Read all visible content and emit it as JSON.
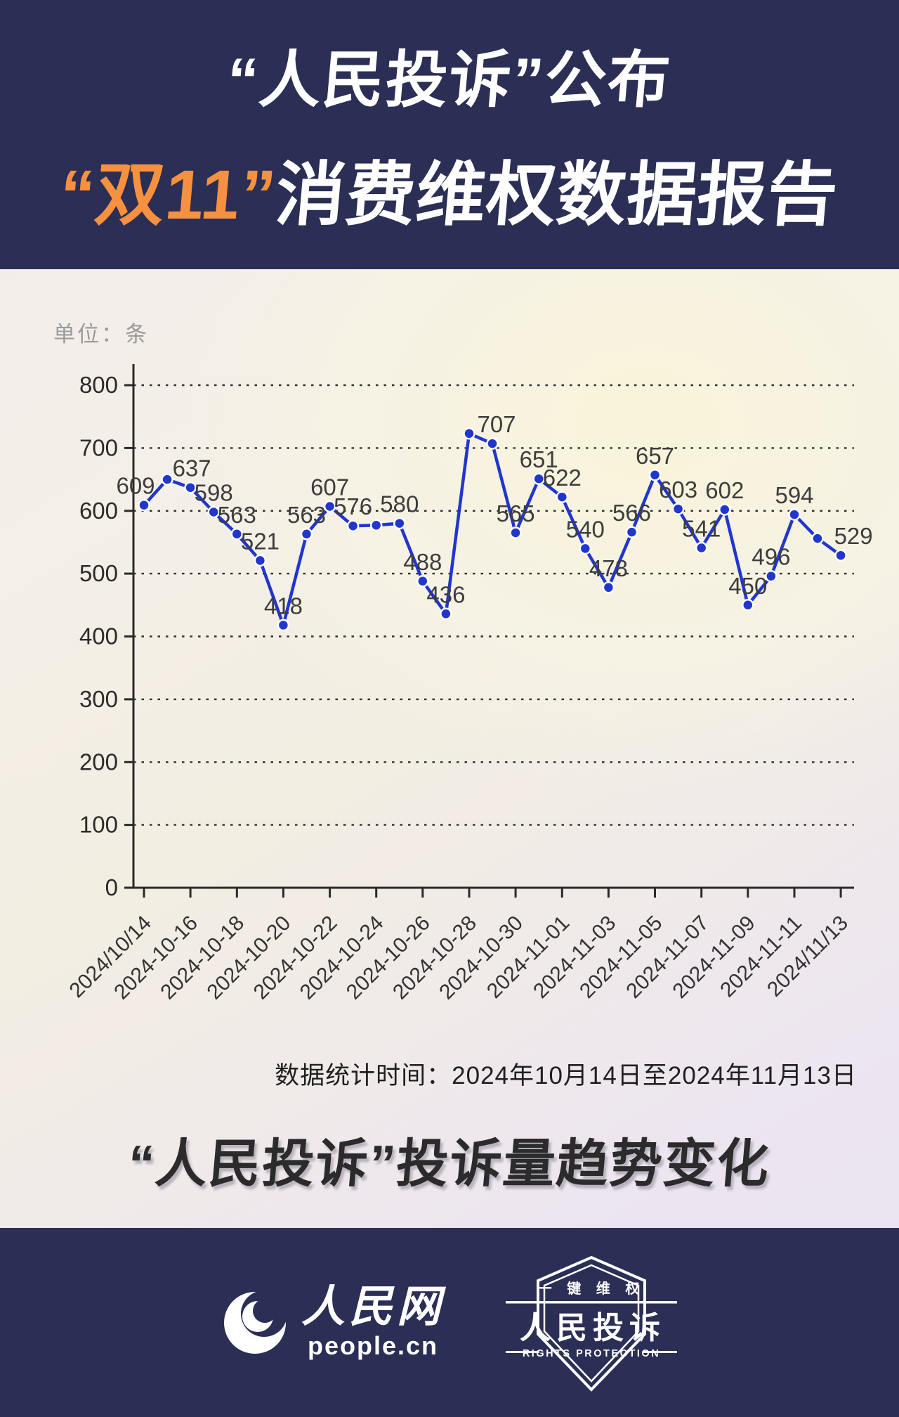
{
  "header": {
    "bg_color": "#2b2e55",
    "highlight_color": "#f7913f",
    "title_line1": "“人民投诉”公布",
    "title_line2_highlight": "“双11”",
    "title_line2_rest": "消费维权数据报告"
  },
  "chart_data": {
    "type": "line",
    "title": "“人民投诉”投诉量趋势变化",
    "unit_label": "单位：条",
    "caption": "数据统计时间：2024年10月14日至2024年11月13日",
    "ylabel": "",
    "xlabel": "",
    "ylim": [
      0,
      800
    ],
    "yticks": [
      0,
      100,
      200,
      300,
      400,
      500,
      600,
      700,
      800
    ],
    "grid": "dotted-horizontal",
    "line_color": "#2136cd",
    "point_color": "#2136cd",
    "x_dates": [
      "2024/10/14",
      "2024-10-15",
      "2024-10-16",
      "2024-10-17",
      "2024-10-18",
      "2024-10-19",
      "2024-10-20",
      "2024-10-21",
      "2024-10-22",
      "2024-10-23",
      "2024-10-24",
      "2024-10-25",
      "2024-10-26",
      "2024-10-27",
      "2024-10-28",
      "2024-10-29",
      "2024-10-30",
      "2024-10-31",
      "2024-11-01",
      "2024-11-02",
      "2024-11-03",
      "2024-11-04",
      "2024-11-05",
      "2024-11-06",
      "2024-11-07",
      "2024-11-08",
      "2024-11-09",
      "2024-11-10",
      "2024-11-11",
      "2024-11-12",
      "2024/11/13"
    ],
    "x_tick_labels": [
      "2024/10/14",
      "2024-10-16",
      "2024-10-18",
      "2024-10-20",
      "2024-10-22",
      "2024-10-24",
      "2024-10-26",
      "2024-10-28",
      "2024-10-30",
      "2024-11-01",
      "2024-11-03",
      "2024-11-05",
      "2024-11-07",
      "2024-11-09",
      "2024-11-11",
      "2024/11/13"
    ],
    "values": [
      609,
      650,
      637,
      598,
      563,
      521,
      418,
      563,
      607,
      576,
      577,
      580,
      488,
      436,
      723,
      707,
      565,
      651,
      622,
      540,
      478,
      566,
      657,
      603,
      541,
      602,
      450,
      496,
      594,
      556,
      529
    ],
    "point_labels": [
      "609",
      null,
      "637",
      "598",
      "563",
      "521",
      "418",
      "563",
      "607",
      "576",
      null,
      "580",
      "488",
      "436",
      null,
      "707",
      "565",
      "651",
      "622",
      "540",
      "478",
      "566",
      "657",
      "603",
      "541",
      "602",
      "450",
      "496",
      "594",
      null,
      "529"
    ]
  },
  "footer": {
    "bg_color": "#2b2e55",
    "people_logo": {
      "name_text": "人民网",
      "domain_text": "people.cn"
    },
    "badge": {
      "top_text": "一 键 维 权",
      "main_text": "人民投诉",
      "sub_text": "RIGHTS PROTECTION"
    }
  }
}
